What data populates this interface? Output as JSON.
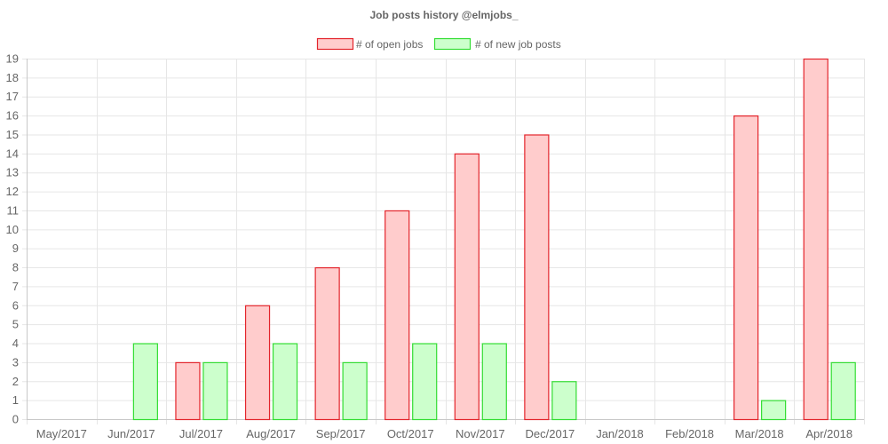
{
  "chart_data": {
    "type": "bar",
    "title": "Job posts history @elmjobs_",
    "xlabel": "",
    "ylabel": "",
    "categories": [
      "May/2017",
      "Jun/2017",
      "Jul/2017",
      "Aug/2017",
      "Sep/2017",
      "Oct/2017",
      "Nov/2017",
      "Dec/2017",
      "Jan/2018",
      "Feb/2018",
      "Mar/2018",
      "Apr/2018"
    ],
    "series": [
      {
        "name": "# of open jobs",
        "values": [
          0,
          0,
          3,
          6,
          8,
          11,
          14,
          15,
          0,
          0,
          16,
          19
        ],
        "fill": "#ffcccc",
        "stroke": "#e3242b"
      },
      {
        "name": "# of new job posts",
        "values": [
          0,
          4,
          3,
          4,
          3,
          4,
          4,
          2,
          0,
          0,
          1,
          3
        ],
        "fill": "#ccffcc",
        "stroke": "#33dd33"
      }
    ],
    "ylim": [
      0,
      19
    ],
    "yticks": [
      0,
      1,
      2,
      3,
      4,
      5,
      6,
      7,
      8,
      9,
      10,
      11,
      12,
      13,
      14,
      15,
      16,
      17,
      18,
      19
    ],
    "grid": true,
    "legend_position": "top-center"
  }
}
